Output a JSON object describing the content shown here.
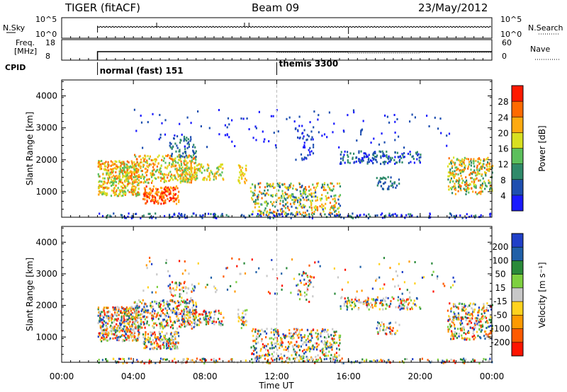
{
  "header": {
    "title": "TIGER (fitACF)",
    "beam": "Beam 09",
    "date": "23/May/2012"
  },
  "top_panels": {
    "nsky_label": "N.Sky",
    "nsearch_label": "N.Search",
    "count_ticks": [
      "10^5",
      "10^0"
    ],
    "freq_label_1": "Freq.",
    "freq_label_2": "[MHz]",
    "freq_ticks": [
      "18",
      "8"
    ],
    "nave_label": "Nave",
    "nave_ticks": [
      "60",
      "0"
    ],
    "cpid_label": "CPID",
    "cpid_segments": [
      {
        "label": "normal (fast) 151",
        "start_hour": 2
      },
      {
        "label": "themis 3300",
        "start_hour": 12
      }
    ]
  },
  "colors": {
    "power_scale": [
      "#1a1aff",
      "#1e4fb0",
      "#2f8a6a",
      "#5cc05c",
      "#d8e020",
      "#ffaa10",
      "#ff6a00",
      "#ff1a00"
    ],
    "velocity_scale": [
      "#2040c8",
      "#2060a8",
      "#2a8a3a",
      "#7ed040",
      "#c8c8c8",
      "#ffd21e",
      "#ff9a00",
      "#ff5a00",
      "#ff1400"
    ]
  },
  "chart_data": [
    {
      "type": "heatmap",
      "name": "power",
      "xlabel": "",
      "ylabel": "Slant Range [km]",
      "x_range_hours": [
        0,
        24
      ],
      "y_range": [
        200,
        4500
      ],
      "y_ticks": [
        1000,
        2000,
        3000,
        4000
      ],
      "colorbar_label": "Power [dB]",
      "colorbar_ticks": [
        4,
        8,
        12,
        16,
        20,
        24,
        28
      ],
      "colorbar_range": [
        0,
        32
      ],
      "grid": false
    },
    {
      "type": "heatmap",
      "name": "velocity",
      "xlabel": "Time UT",
      "ylabel": "Slant Range [km]",
      "x_range_hours": [
        0,
        24
      ],
      "x_ticks": [
        "00:00",
        "04:00",
        "08:00",
        "12:00",
        "16:00",
        "20:00",
        "00:00"
      ],
      "y_range": [
        200,
        4500
      ],
      "y_ticks": [
        1000,
        2000,
        3000,
        4000
      ],
      "colorbar_label": "Velocity [m s⁻¹]",
      "colorbar_ticks": [
        "200",
        "100",
        "50",
        "15",
        "-15",
        "-50",
        "-100",
        "-200"
      ],
      "grid": false
    }
  ]
}
